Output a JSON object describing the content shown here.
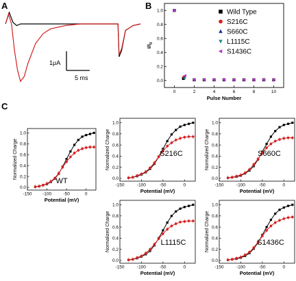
{
  "panels": {
    "a": "A",
    "b": "B",
    "c": "C"
  },
  "colors": {
    "wild_type": "#000000",
    "mutant": "#d42020",
    "s660c": "#1a2a9a",
    "l1115c": "#2a8a8a",
    "s1436c": "#b030d0",
    "error": "#e8a0a0"
  },
  "chart_data": [
    {
      "id": "A",
      "type": "line",
      "series": [
        {
          "color_key": "wild_type",
          "t": [
            0,
            0.5,
            1.0,
            1.5,
            2.0,
            3,
            4,
            5,
            8,
            12,
            15,
            15.15,
            15.5,
            16,
            17,
            18
          ],
          "y": [
            0,
            0.35,
            0.05,
            -0.05,
            0,
            0,
            0,
            0,
            0,
            0,
            0,
            -1.0,
            -0.8,
            -0.2,
            -0.05,
            0
          ]
        },
        {
          "color_key": "mutant",
          "t": [
            0,
            0.4,
            0.8,
            1.2,
            1.6,
            2.0,
            2.5,
            3,
            4,
            5,
            6,
            8,
            10,
            12,
            15,
            15.15,
            15.5,
            16,
            17,
            18
          ],
          "y": [
            0,
            0.3,
            0.0,
            -0.8,
            -1.4,
            -1.75,
            -1.6,
            -1.2,
            -0.6,
            -0.3,
            -0.15,
            -0.05,
            0,
            0,
            0,
            -0.95,
            -0.75,
            -0.2,
            -0.05,
            0
          ]
        }
      ],
      "scale_bar": {
        "y_label": "1μA",
        "y_value": 1,
        "x_label": "5 ms",
        "x_value": 5
      }
    },
    {
      "id": "B",
      "type": "scatter",
      "xlabel": "Pulse Number",
      "ylabel": "I/I",
      "ylabel_sub": "0",
      "xlim": [
        -1,
        11
      ],
      "ylim": [
        -0.1,
        1.1
      ],
      "xticks": [
        "0",
        "2",
        "4",
        "6",
        "8",
        "10"
      ],
      "yticks": [
        "0.0",
        "0.2",
        "0.4",
        "0.6",
        "0.8",
        "1.0"
      ],
      "x": [
        0,
        1,
        2,
        3,
        4,
        5,
        6,
        7,
        8,
        9,
        10
      ],
      "legend_position": "right",
      "series": [
        {
          "name": "Wild Type",
          "marker": "square",
          "color_key": "wild_type",
          "values": [
            1.0,
            0.03,
            0.01,
            0.01,
            0.01,
            0.01,
            0.01,
            0.01,
            0.01,
            0.01,
            0.01
          ]
        },
        {
          "name": "S216C",
          "marker": "circle",
          "color_key": "mutant",
          "values": [
            1.0,
            0.05,
            0.01,
            0.01,
            0.01,
            0.01,
            0.01,
            0.01,
            0.01,
            0.01,
            0.01
          ]
        },
        {
          "name": "S660C",
          "marker": "triangle-up",
          "color_key": "s660c",
          "values": [
            1.0,
            0.04,
            0.01,
            0.01,
            0.01,
            0.01,
            0.01,
            0.01,
            0.01,
            0.01,
            0.01
          ]
        },
        {
          "name": "L1115C",
          "marker": "triangle-down",
          "color_key": "l1115c",
          "values": [
            1.0,
            0.03,
            0.01,
            0.01,
            0.01,
            0.01,
            0.01,
            0.01,
            0.01,
            0.01,
            0.01
          ]
        },
        {
          "name": "S1436C",
          "marker": "triangle-left",
          "color_key": "s1436c",
          "values": [
            1.0,
            0.07,
            0.01,
            0.01,
            0.01,
            0.01,
            0.01,
            0.01,
            0.01,
            0.01,
            0.01
          ]
        }
      ]
    },
    {
      "id": "C-WT",
      "type": "line",
      "label": "WT",
      "xlabel": "Potential (mV)",
      "ylabel": "Normalized Charge",
      "xlim": [
        -150,
        25
      ],
      "ylim": [
        -0.05,
        1.08
      ],
      "xticks": [
        "-150",
        "-100",
        "-50",
        "0"
      ],
      "yticks": [
        "0.0",
        "0.2",
        "0.4",
        "0.6",
        "0.8",
        "1.0"
      ],
      "x": [
        -130,
        -120,
        -110,
        -100,
        -90,
        -80,
        -70,
        -60,
        -50,
        -40,
        -30,
        -20,
        -10,
        0,
        10,
        20
      ],
      "series": [
        {
          "color_key": "wild_type",
          "values": [
            0.01,
            0.02,
            0.04,
            0.06,
            0.1,
            0.16,
            0.25,
            0.38,
            0.52,
            0.66,
            0.78,
            0.87,
            0.93,
            0.96,
            0.98,
            1.0
          ]
        },
        {
          "color_key": "mutant",
          "values": [
            0.01,
            0.02,
            0.04,
            0.07,
            0.11,
            0.17,
            0.26,
            0.37,
            0.47,
            0.56,
            0.63,
            0.68,
            0.71,
            0.73,
            0.74,
            0.74
          ]
        }
      ]
    },
    {
      "id": "C-S216C",
      "type": "line",
      "label": "S216C",
      "xlabel": "Potential (mV)",
      "ylabel": "Normalized Charge",
      "xlim": [
        -150,
        25
      ],
      "ylim": [
        -0.05,
        1.08
      ],
      "xticks": [
        "-150",
        "-100",
        "-50",
        "0"
      ],
      "yticks": [
        "0.0",
        "0.2",
        "0.4",
        "0.6",
        "0.8",
        "1.0"
      ],
      "x": [
        -130,
        -120,
        -110,
        -100,
        -90,
        -80,
        -70,
        -60,
        -50,
        -40,
        -30,
        -20,
        -10,
        0,
        10,
        20
      ],
      "series": [
        {
          "color_key": "wild_type",
          "values": [
            0.01,
            0.02,
            0.04,
            0.07,
            0.11,
            0.17,
            0.26,
            0.39,
            0.53,
            0.67,
            0.79,
            0.87,
            0.93,
            0.96,
            0.98,
            1.0
          ]
        },
        {
          "color_key": "mutant",
          "values": [
            0.01,
            0.02,
            0.05,
            0.08,
            0.12,
            0.19,
            0.28,
            0.39,
            0.49,
            0.58,
            0.64,
            0.69,
            0.72,
            0.74,
            0.75,
            0.75
          ]
        }
      ]
    },
    {
      "id": "C-S660C",
      "type": "line",
      "label": "S660C",
      "xlabel": "Potential (mV)",
      "ylabel": "Normalized Charge",
      "xlim": [
        -150,
        25
      ],
      "ylim": [
        -0.05,
        1.08
      ],
      "xticks": [
        "-150",
        "-100",
        "-50",
        "0"
      ],
      "yticks": [
        "0.0",
        "0.2",
        "0.4",
        "0.6",
        "0.8",
        "1.0"
      ],
      "x": [
        -130,
        -120,
        -110,
        -100,
        -90,
        -80,
        -70,
        -60,
        -50,
        -40,
        -30,
        -20,
        -10,
        0,
        10,
        20
      ],
      "series": [
        {
          "color_key": "wild_type",
          "values": [
            0.01,
            0.02,
            0.03,
            0.05,
            0.09,
            0.14,
            0.22,
            0.34,
            0.48,
            0.62,
            0.75,
            0.85,
            0.92,
            0.96,
            0.98,
            1.0
          ]
        },
        {
          "color_key": "mutant",
          "values": [
            0.01,
            0.02,
            0.04,
            0.06,
            0.1,
            0.16,
            0.25,
            0.35,
            0.46,
            0.55,
            0.62,
            0.67,
            0.7,
            0.72,
            0.73,
            0.73
          ]
        }
      ]
    },
    {
      "id": "C-L1115C",
      "type": "line",
      "label": "L1115C",
      "xlabel": "Potential (mV)",
      "ylabel": "Normalized Charge",
      "xlim": [
        -150,
        25
      ],
      "ylim": [
        -0.05,
        1.08
      ],
      "xticks": [
        "-150",
        "-100",
        "-50",
        "0"
      ],
      "yticks": [
        "0.0",
        "0.2",
        "0.4",
        "0.6",
        "0.8",
        "1.0"
      ],
      "x": [
        -130,
        -120,
        -110,
        -100,
        -90,
        -80,
        -70,
        -60,
        -50,
        -40,
        -30,
        -20,
        -10,
        0,
        10,
        20
      ],
      "series": [
        {
          "color_key": "wild_type",
          "values": [
            0.01,
            0.02,
            0.04,
            0.07,
            0.11,
            0.17,
            0.27,
            0.4,
            0.54,
            0.68,
            0.8,
            0.88,
            0.93,
            0.96,
            0.98,
            1.0
          ]
        },
        {
          "color_key": "mutant",
          "values": [
            0.01,
            0.02,
            0.05,
            0.08,
            0.13,
            0.2,
            0.29,
            0.39,
            0.48,
            0.56,
            0.62,
            0.66,
            0.69,
            0.7,
            0.71,
            0.71
          ]
        }
      ]
    },
    {
      "id": "C-S1436C",
      "type": "line",
      "label": "S1436C",
      "xlabel": "Potential (mV)",
      "ylabel": "Normalized Charge",
      "xlim": [
        -150,
        25
      ],
      "ylim": [
        -0.05,
        1.08
      ],
      "xticks": [
        "-150",
        "-100",
        "-50",
        "0"
      ],
      "yticks": [
        "0.0",
        "0.2",
        "0.4",
        "0.6",
        "0.8",
        "1.0"
      ],
      "x": [
        -130,
        -120,
        -110,
        -100,
        -90,
        -80,
        -70,
        -60,
        -50,
        -40,
        -30,
        -20,
        -10,
        0,
        10,
        20
      ],
      "series": [
        {
          "color_key": "wild_type",
          "values": [
            0.01,
            0.02,
            0.03,
            0.05,
            0.08,
            0.13,
            0.21,
            0.32,
            0.46,
            0.6,
            0.73,
            0.84,
            0.91,
            0.95,
            0.98,
            1.0
          ]
        },
        {
          "color_key": "mutant",
          "values": [
            0.01,
            0.02,
            0.04,
            0.06,
            0.1,
            0.15,
            0.23,
            0.33,
            0.44,
            0.54,
            0.62,
            0.68,
            0.72,
            0.75,
            0.77,
            0.78
          ]
        }
      ]
    }
  ]
}
